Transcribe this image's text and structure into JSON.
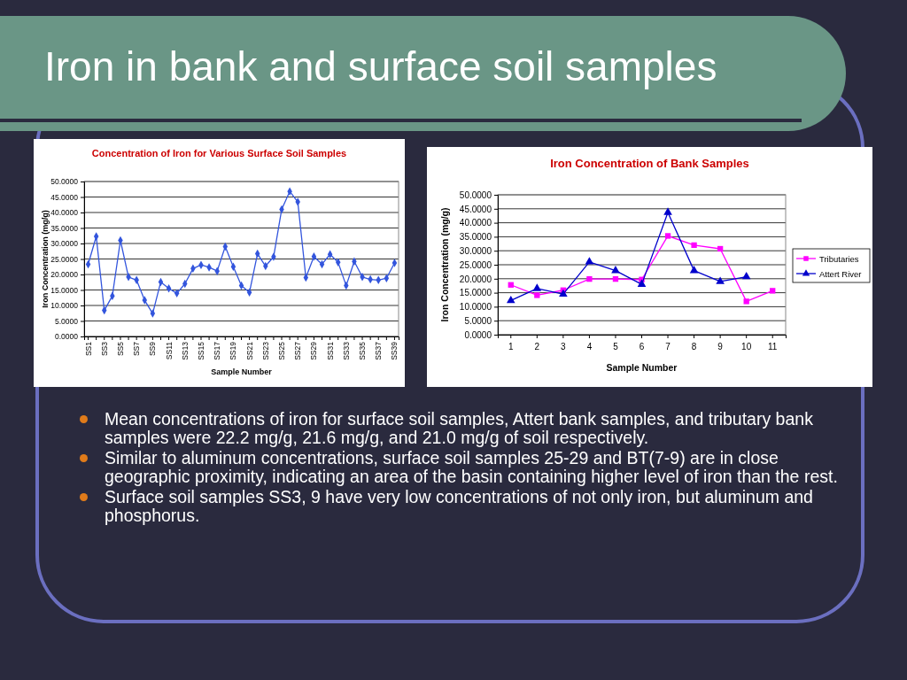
{
  "chart_data": [
    {
      "type": "line",
      "title": "Concentration of Iron for Various Surface Soil Samples",
      "xlabel": "Sample Number",
      "ylabel": "Iron Concentration (mg/g)",
      "categories": [
        "SS1",
        null,
        "SS3",
        null,
        "SS5",
        null,
        "SS7",
        null,
        "SS9",
        null,
        "SS11",
        null,
        "SS13",
        null,
        "SS15",
        null,
        "SS17",
        null,
        "SS19",
        null,
        "SS21",
        null,
        "SS23",
        null,
        "SS25",
        null,
        "SS27",
        null,
        "SS29",
        null,
        "SS31",
        null,
        "SS33",
        null,
        "SS35",
        null,
        "SS37",
        null,
        "SS39"
      ],
      "series": [
        {
          "color": "#3355dd",
          "values": [
            23.3,
            32.3,
            8.4,
            13.1,
            31.0,
            19.2,
            18.2,
            11.7,
            7.4,
            17.6,
            15.5,
            13.9,
            17.0,
            21.9,
            23.1,
            22.3,
            21.1,
            29.0,
            22.5,
            16.4,
            14.2,
            26.7,
            22.7,
            25.7,
            41.0,
            46.8,
            43.4,
            19.0,
            25.8,
            23.3,
            26.5,
            23.9,
            16.4,
            24.2,
            19.2,
            18.4,
            18.2,
            18.8,
            23.7
          ]
        }
      ],
      "ylim": [
        0,
        50
      ],
      "yticks": [
        {
          "value": 0,
          "label": "0.0000"
        },
        {
          "value": 5,
          "label": "5.0000"
        },
        {
          "value": 10,
          "label": "10.0000"
        },
        {
          "value": 15,
          "label": "15.0000"
        },
        {
          "value": 20,
          "label": "20.0000"
        },
        {
          "value": 25,
          "label": "25.0000"
        },
        {
          "value": 30,
          "label": "30.0000"
        },
        {
          "value": 35,
          "label": "35.0000"
        },
        {
          "value": 40,
          "label": "40.0000"
        },
        {
          "value": 45,
          "label": "45.0000"
        },
        {
          "value": 50,
          "label": "50.0000"
        }
      ],
      "grid": "y",
      "marker": "diamond",
      "legend": false
    },
    {
      "type": "line",
      "title": "Iron Concentration of Bank Samples",
      "xlabel": "Sample Number",
      "ylabel": "Iron Concentration (mg/g)",
      "categories": [
        "1",
        "2",
        "3",
        "4",
        "5",
        "6",
        "7",
        "8",
        "9",
        "10",
        "11"
      ],
      "series": [
        {
          "name": "Tributaries",
          "color": "#ff00ff",
          "marker": "square",
          "values": [
            17.8,
            14.1,
            15.9,
            19.9,
            19.9,
            19.7,
            35.3,
            32.0,
            30.7,
            11.9,
            15.7
          ]
        },
        {
          "name": "Attert River",
          "color": "#0000cc",
          "marker": "triangle",
          "values": [
            12.2,
            16.5,
            14.5,
            26.0,
            22.9,
            18.0,
            43.7,
            22.9,
            19.0,
            20.7,
            null
          ]
        }
      ],
      "ylim": [
        0,
        50
      ],
      "yticks": [
        {
          "value": 0,
          "label": "0.0000"
        },
        {
          "value": 5,
          "label": "5.0000"
        },
        {
          "value": 10,
          "label": "10.0000"
        },
        {
          "value": 15,
          "label": "15.0000"
        },
        {
          "value": 20,
          "label": "20.0000"
        },
        {
          "value": 25,
          "label": "25.0000"
        },
        {
          "value": 30,
          "label": "30.0000"
        },
        {
          "value": 35,
          "label": "35.0000"
        },
        {
          "value": 40,
          "label": "40.0000"
        },
        {
          "value": 45,
          "label": "45.0000"
        },
        {
          "value": 50,
          "label": "50.0000"
        }
      ],
      "grid": "y",
      "legend": "right"
    },
    {
      "type": "other",
      "title": "Iron in bank and surface soil samples",
      "annotations": [
        "Mean concentrations of iron for surface soil samples, Attert bank samples, and tributary bank samples were 22.2 mg/g, 21.6 mg/g, and 21.0 mg/g of soil respectively.",
        "Similar to aluminum concentrations, surface soil samples 25-29 and BT(7-9) are in close geographic proximity, indicating an area of the basin containing higher level of iron than the rest.",
        "Surface soil samples SS3, 9 have very low concentrations of not only iron, but aluminum and phosphorus."
      ]
    }
  ]
}
